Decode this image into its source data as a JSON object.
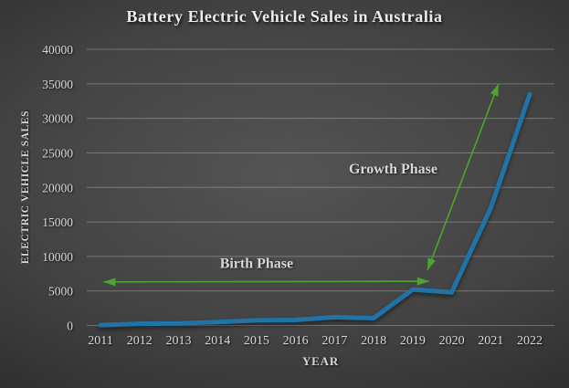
{
  "title": "Battery Electric Vehicle Sales in Australia",
  "colors": {
    "background_center": "#545454",
    "background_edge": "#1d1d1d",
    "line": "#1F73A6",
    "annotation_green": "#4CA52F",
    "text": "#d8d8d8",
    "gridline": "rgba(255,255,255,0.27)"
  },
  "chart_data": {
    "type": "line",
    "title": "Battery Electric Vehicle Sales in Australia",
    "xlabel": "YEAR",
    "ylabel": "ELECTRIC VEHICLE SALES",
    "categories": [
      2011,
      2012,
      2013,
      2014,
      2015,
      2016,
      2017,
      2018,
      2019,
      2020,
      2021,
      2022
    ],
    "values": [
      49,
      253,
      304,
      500,
      750,
      800,
      1200,
      1050,
      5200,
      4800,
      17000,
      33500
    ],
    "ylim": [
      0,
      40000
    ],
    "yticks": [
      0,
      5000,
      10000,
      15000,
      20000,
      25000,
      30000,
      35000,
      40000
    ],
    "grid": "horizontal",
    "legend_position": "none",
    "line_color": "#1F73A6",
    "annotation_color": "#4CA52F",
    "annotations": [
      {
        "label": "Birth Phase",
        "arrow": "double-headed",
        "from": {
          "year": 2011.08,
          "value": 6300
        },
        "to": {
          "year": 2019.42,
          "value": 6400
        },
        "label_at": {
          "year": 2015.0,
          "value": 9000
        }
      },
      {
        "label": "Growth Phase",
        "arrow": "double-headed",
        "from": {
          "year": 2019.38,
          "value": 8000
        },
        "to": {
          "year": 2021.2,
          "value": 35000
        },
        "label_at": {
          "year": 2018.5,
          "value": 22700
        }
      }
    ]
  }
}
